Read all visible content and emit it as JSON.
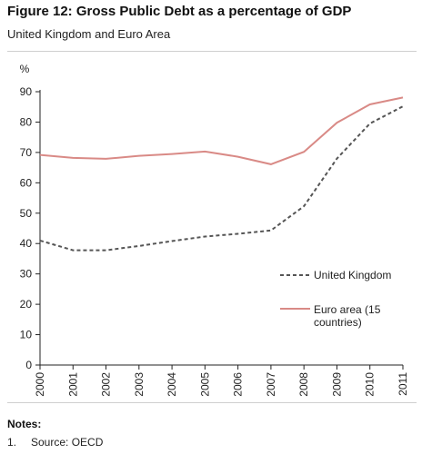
{
  "title": "Figure 12: Gross Public Debt as a percentage of GDP",
  "subtitle": "United Kingdom and Euro Area",
  "notes": {
    "heading": "Notes:",
    "items": [
      {
        "number": "1.",
        "text": "Source: OECD"
      }
    ]
  },
  "colors": {
    "uk": "#555555",
    "euro": "#d98a86",
    "axis": "#222222"
  },
  "chart_data": {
    "type": "line",
    "ylabel": "%",
    "xlabel": "",
    "ylim": [
      0,
      90
    ],
    "yticks": [
      0,
      10,
      20,
      30,
      40,
      50,
      60,
      70,
      80,
      90
    ],
    "x": [
      "2000",
      "2001",
      "2002",
      "2003",
      "2004",
      "2005",
      "2006",
      "2007",
      "2008",
      "2009",
      "2010",
      "2011"
    ],
    "grid": false,
    "legend_position": "right",
    "series": [
      {
        "name": "United Kingdom",
        "style": "dashed",
        "values": [
          41,
          37.8,
          37.8,
          39.2,
          40.8,
          42.3,
          43.2,
          44.3,
          52.3,
          68,
          79.5,
          85.2
        ]
      },
      {
        "name": "Euro area (15 countries)",
        "legend_lines": [
          "Euro area (15",
          "countries)"
        ],
        "style": "solid",
        "values": [
          69.2,
          68.2,
          67.9,
          68.9,
          69.5,
          70.3,
          68.6,
          66.1,
          70.2,
          79.8,
          85.8,
          88.1
        ]
      }
    ]
  }
}
